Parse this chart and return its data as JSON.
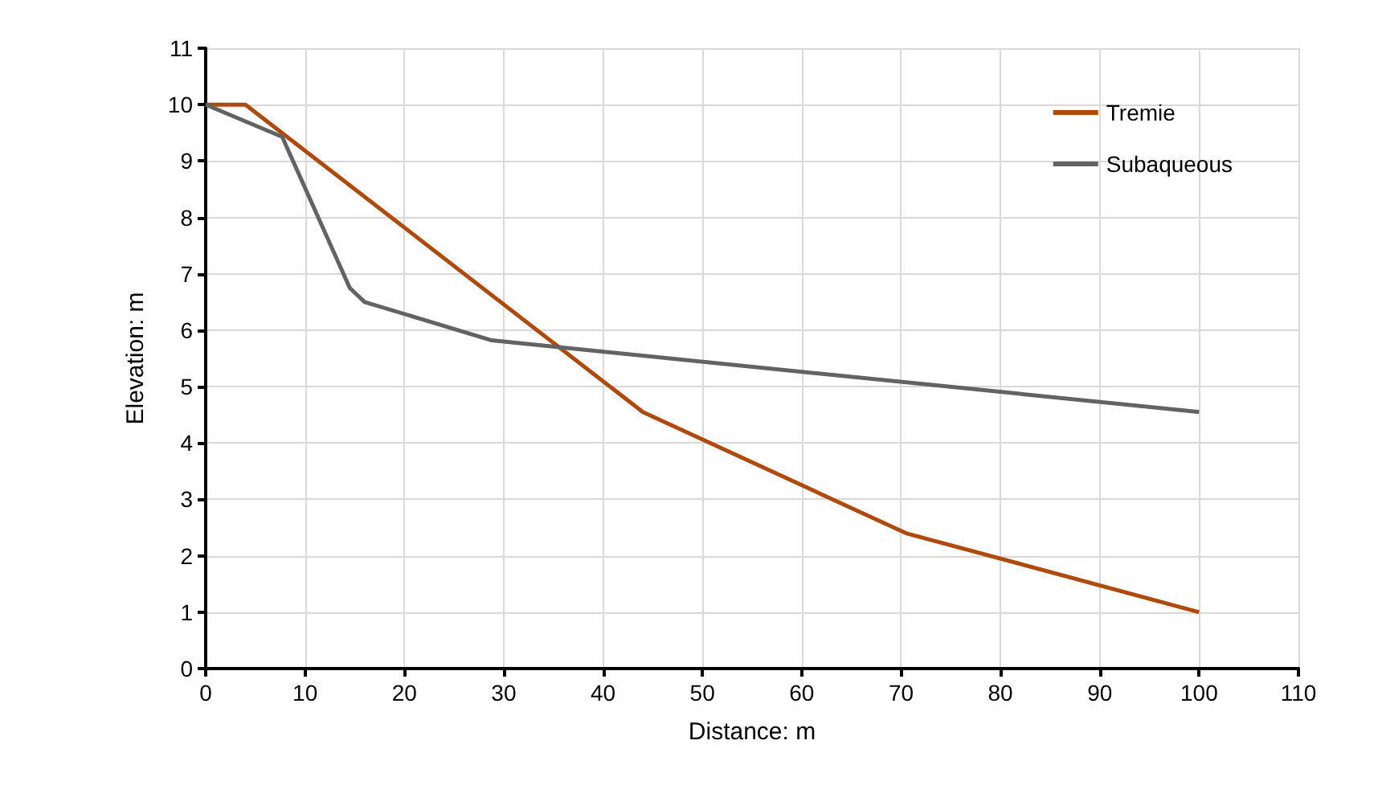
{
  "chart_data": {
    "type": "line",
    "xlabel": "Distance: m",
    "ylabel": "Elevation: m",
    "xlim": [
      0,
      110
    ],
    "xticks": [
      0,
      10,
      20,
      30,
      40,
      50,
      60,
      70,
      80,
      90,
      100,
      110
    ],
    "ylim": [
      0,
      11
    ],
    "yticks": [
      0,
      1,
      2,
      3,
      4,
      5,
      6,
      7,
      8,
      9,
      10,
      11
    ],
    "grid": true,
    "legend": "top right",
    "marker": "none",
    "line_style": "solid",
    "series": [
      {
        "name": "Tremie",
        "color": "#b04a0c",
        "x": [
          0,
          4,
          44,
          70.5,
          100
        ],
        "values": [
          10,
          10,
          4.55,
          2.4,
          1.0
        ]
      },
      {
        "name": "Subaqueous",
        "color": "#636363",
        "x": [
          0,
          7.7,
          14.5,
          16,
          28.8,
          100
        ],
        "values": [
          10,
          9.43,
          6.75,
          6.5,
          5.82,
          4.55
        ]
      }
    ]
  }
}
